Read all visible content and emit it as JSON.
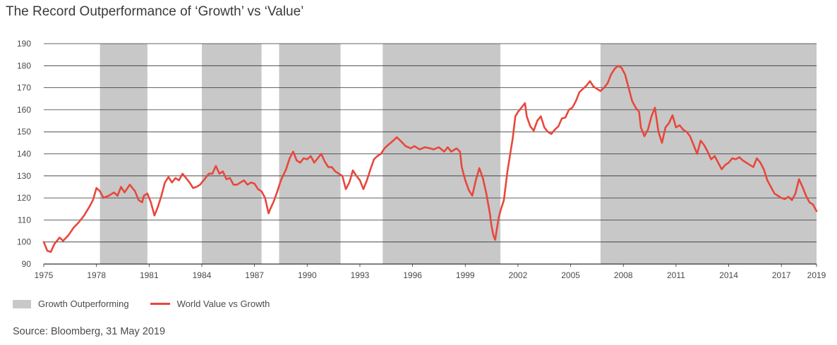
{
  "page": {
    "title": "The Record Outperformance of ‘Growth’ vs ‘Value’",
    "source": "Source: Bloomberg, 31 May 2019"
  },
  "colors": {
    "shade": "#c8c8c8",
    "line": "#e8473c",
    "grid": "#333333",
    "background": "#ffffff"
  },
  "chart_data": {
    "type": "line",
    "title": "The Record Outperformance of ‘Growth’ vs ‘Value’",
    "xlabel": "",
    "ylabel": "",
    "xlim": [
      1975,
      2019
    ],
    "ylim": [
      90,
      190
    ],
    "yticks": [
      90,
      100,
      110,
      120,
      130,
      140,
      150,
      160,
      170,
      180,
      190
    ],
    "xticks": [
      1975,
      1978,
      1981,
      1984,
      1987,
      1990,
      1993,
      1996,
      1999,
      2002,
      2005,
      2008,
      2011,
      2014,
      2017,
      2019
    ],
    "grid": "horizontal",
    "legend_position": "bottom-left",
    "shaded_periods_label": "Growth Outperforming",
    "shaded_periods": [
      [
        1978.2,
        1980.9
      ],
      [
        1984.0,
        1987.4
      ],
      [
        1988.4,
        1991.9
      ],
      [
        1994.3,
        2001.0
      ],
      [
        2006.7,
        2019.0
      ]
    ],
    "series": [
      {
        "name": "World Value vs Growth",
        "points": [
          [
            1975.0,
            100
          ],
          [
            1975.2,
            96
          ],
          [
            1975.4,
            95.5
          ],
          [
            1975.6,
            99
          ],
          [
            1975.9,
            102
          ],
          [
            1976.1,
            100.5
          ],
          [
            1976.4,
            103
          ],
          [
            1976.7,
            106.5
          ],
          [
            1977.0,
            109
          ],
          [
            1977.3,
            112
          ],
          [
            1977.6,
            116
          ],
          [
            1977.8,
            119
          ],
          [
            1978.0,
            124.5
          ],
          [
            1978.2,
            123
          ],
          [
            1978.4,
            120
          ],
          [
            1978.7,
            121
          ],
          [
            1979.0,
            122.5
          ],
          [
            1979.2,
            121
          ],
          [
            1979.4,
            125
          ],
          [
            1979.6,
            122.5
          ],
          [
            1979.9,
            126
          ],
          [
            1980.0,
            125
          ],
          [
            1980.2,
            123
          ],
          [
            1980.4,
            119
          ],
          [
            1980.6,
            118
          ],
          [
            1980.7,
            121
          ],
          [
            1980.9,
            122
          ],
          [
            1981.1,
            118
          ],
          [
            1981.3,
            112
          ],
          [
            1981.5,
            116
          ],
          [
            1981.7,
            121
          ],
          [
            1981.9,
            127
          ],
          [
            1982.1,
            129.5
          ],
          [
            1982.3,
            127
          ],
          [
            1982.5,
            129
          ],
          [
            1982.7,
            128
          ],
          [
            1982.9,
            131
          ],
          [
            1983.1,
            129
          ],
          [
            1983.3,
            127
          ],
          [
            1983.5,
            124.5
          ],
          [
            1983.7,
            125
          ],
          [
            1983.9,
            126
          ],
          [
            1984.1,
            128
          ],
          [
            1984.4,
            131
          ],
          [
            1984.6,
            131
          ],
          [
            1984.8,
            134.5
          ],
          [
            1985.0,
            131
          ],
          [
            1985.2,
            132
          ],
          [
            1985.4,
            128.5
          ],
          [
            1985.6,
            129
          ],
          [
            1985.8,
            126
          ],
          [
            1986.0,
            126
          ],
          [
            1986.2,
            127
          ],
          [
            1986.4,
            128
          ],
          [
            1986.6,
            126
          ],
          [
            1986.8,
            127
          ],
          [
            1987.0,
            126.5
          ],
          [
            1987.2,
            124
          ],
          [
            1987.4,
            123
          ],
          [
            1987.6,
            120
          ],
          [
            1987.8,
            113
          ],
          [
            1987.9,
            115
          ],
          [
            1988.1,
            118.5
          ],
          [
            1988.3,
            123
          ],
          [
            1988.5,
            128
          ],
          [
            1988.8,
            133
          ],
          [
            1989.0,
            138
          ],
          [
            1989.2,
            141
          ],
          [
            1989.4,
            137
          ],
          [
            1989.6,
            136
          ],
          [
            1989.8,
            138
          ],
          [
            1990.0,
            137.5
          ],
          [
            1990.2,
            139
          ],
          [
            1990.4,
            136
          ],
          [
            1990.6,
            138
          ],
          [
            1990.8,
            140
          ],
          [
            1991.0,
            136.5
          ],
          [
            1991.2,
            134
          ],
          [
            1991.4,
            134
          ],
          [
            1991.6,
            132
          ],
          [
            1991.8,
            131
          ],
          [
            1992.0,
            130
          ],
          [
            1992.2,
            124
          ],
          [
            1992.4,
            127
          ],
          [
            1992.6,
            132.5
          ],
          [
            1992.8,
            130
          ],
          [
            1993.0,
            128
          ],
          [
            1993.2,
            124
          ],
          [
            1993.4,
            128
          ],
          [
            1993.6,
            133
          ],
          [
            1993.8,
            137.5
          ],
          [
            1994.0,
            139
          ],
          [
            1994.2,
            140
          ],
          [
            1994.4,
            142.5
          ],
          [
            1994.6,
            144
          ],
          [
            1994.9,
            146
          ],
          [
            1995.1,
            147.5
          ],
          [
            1995.3,
            146
          ],
          [
            1995.6,
            143.5
          ],
          [
            1995.9,
            142.5
          ],
          [
            1996.1,
            143.5
          ],
          [
            1996.4,
            142
          ],
          [
            1996.7,
            143
          ],
          [
            1997.0,
            142.5
          ],
          [
            1997.2,
            142
          ],
          [
            1997.5,
            143
          ],
          [
            1997.8,
            141
          ],
          [
            1998.0,
            143
          ],
          [
            1998.2,
            141
          ],
          [
            1998.5,
            142.5
          ],
          [
            1998.7,
            141
          ],
          [
            1998.8,
            134
          ],
          [
            1999.0,
            128
          ],
          [
            1999.2,
            123.5
          ],
          [
            1999.4,
            121
          ],
          [
            1999.6,
            128
          ],
          [
            1999.8,
            133.5
          ],
          [
            2000.0,
            129
          ],
          [
            2000.2,
            122
          ],
          [
            2000.4,
            113
          ],
          [
            2000.5,
            107
          ],
          [
            2000.6,
            103
          ],
          [
            2000.7,
            101
          ],
          [
            2000.8,
            106
          ],
          [
            2000.9,
            111
          ],
          [
            2001.0,
            114
          ],
          [
            2001.2,
            119
          ],
          [
            2001.4,
            132
          ],
          [
            2001.6,
            142
          ],
          [
            2001.7,
            147
          ],
          [
            2001.85,
            157
          ],
          [
            2002.0,
            159
          ],
          [
            2002.2,
            161
          ],
          [
            2002.4,
            163
          ],
          [
            2002.5,
            157
          ],
          [
            2002.7,
            152.5
          ],
          [
            2002.9,
            150.5
          ],
          [
            2003.1,
            155
          ],
          [
            2003.3,
            157
          ],
          [
            2003.5,
            152
          ],
          [
            2003.7,
            150
          ],
          [
            2003.9,
            149
          ],
          [
            2004.1,
            151
          ],
          [
            2004.3,
            152.5
          ],
          [
            2004.5,
            156
          ],
          [
            2004.7,
            156.5
          ],
          [
            2004.9,
            160
          ],
          [
            2005.1,
            161
          ],
          [
            2005.3,
            164
          ],
          [
            2005.5,
            168
          ],
          [
            2005.7,
            169.5
          ],
          [
            2005.9,
            171
          ],
          [
            2006.1,
            173
          ],
          [
            2006.3,
            170.5
          ],
          [
            2006.5,
            169.5
          ],
          [
            2006.7,
            168.5
          ],
          [
            2006.9,
            170
          ],
          [
            2007.1,
            172
          ],
          [
            2007.3,
            176
          ],
          [
            2007.5,
            178.5
          ],
          [
            2007.7,
            180
          ],
          [
            2007.9,
            179
          ],
          [
            2008.1,
            176
          ],
          [
            2008.3,
            170
          ],
          [
            2008.5,
            164
          ],
          [
            2008.7,
            161
          ],
          [
            2008.9,
            159
          ],
          [
            2009.0,
            152
          ],
          [
            2009.2,
            148
          ],
          [
            2009.4,
            151
          ],
          [
            2009.6,
            157
          ],
          [
            2009.8,
            161
          ],
          [
            2010.0,
            150
          ],
          [
            2010.2,
            145
          ],
          [
            2010.4,
            152
          ],
          [
            2010.6,
            154
          ],
          [
            2010.8,
            157.5
          ],
          [
            2011.0,
            152
          ],
          [
            2011.2,
            153
          ],
          [
            2011.4,
            151
          ],
          [
            2011.6,
            150
          ],
          [
            2011.8,
            148
          ],
          [
            2012.0,
            144
          ],
          [
            2012.2,
            140
          ],
          [
            2012.4,
            146
          ],
          [
            2012.6,
            144
          ],
          [
            2012.8,
            141
          ],
          [
            2013.0,
            137.5
          ],
          [
            2013.2,
            139
          ],
          [
            2013.4,
            136
          ],
          [
            2013.6,
            133
          ],
          [
            2013.8,
            135
          ],
          [
            2014.0,
            136
          ],
          [
            2014.2,
            138
          ],
          [
            2014.4,
            137.5
          ],
          [
            2014.6,
            138.5
          ],
          [
            2014.8,
            137
          ],
          [
            2015.0,
            136
          ],
          [
            2015.2,
            135
          ],
          [
            2015.4,
            134
          ],
          [
            2015.6,
            138
          ],
          [
            2015.8,
            136
          ],
          [
            2016.0,
            133
          ],
          [
            2016.2,
            128
          ],
          [
            2016.4,
            125
          ],
          [
            2016.6,
            122
          ],
          [
            2016.8,
            121
          ],
          [
            2017.0,
            120
          ],
          [
            2017.2,
            119.5
          ],
          [
            2017.4,
            120.5
          ],
          [
            2017.6,
            119
          ],
          [
            2017.8,
            122
          ],
          [
            2018.0,
            128.5
          ],
          [
            2018.2,
            125
          ],
          [
            2018.4,
            121
          ],
          [
            2018.6,
            118
          ],
          [
            2018.8,
            117
          ],
          [
            2019.0,
            114
          ]
        ]
      }
    ]
  },
  "legend": {
    "shade_label": "Growth Outperforming",
    "line_label": "World Value vs Growth"
  }
}
